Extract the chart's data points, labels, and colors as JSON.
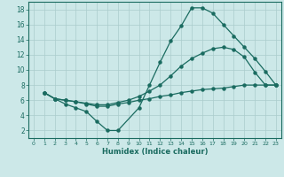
{
  "xlabel": "Humidex (Indice chaleur)",
  "bg_color": "#cce8e8",
  "line_color": "#1a6b60",
  "grid_color": "#aacccc",
  "xlim": [
    -0.5,
    23.5
  ],
  "ylim": [
    1.0,
    19.0
  ],
  "xticks": [
    0,
    1,
    2,
    3,
    4,
    5,
    6,
    7,
    8,
    9,
    10,
    11,
    12,
    13,
    14,
    15,
    16,
    17,
    18,
    19,
    20,
    21,
    22,
    23
  ],
  "yticks": [
    2,
    4,
    6,
    8,
    10,
    12,
    14,
    16,
    18
  ],
  "line1_x": [
    1,
    2,
    3,
    4,
    5,
    6,
    7,
    8,
    10,
    11,
    12,
    13,
    14,
    15,
    16,
    17,
    18,
    19,
    20,
    21,
    22,
    23
  ],
  "line1_y": [
    7.0,
    6.2,
    5.5,
    5.0,
    4.5,
    3.2,
    2.0,
    2.0,
    5.0,
    8.0,
    11.0,
    13.8,
    15.8,
    18.2,
    18.2,
    17.5,
    16.0,
    14.5,
    13.0,
    11.5,
    9.8,
    8.0
  ],
  "line2_x": [
    1,
    2,
    3,
    4,
    5,
    6,
    7,
    8,
    9,
    10,
    11,
    12,
    13,
    14,
    15,
    16,
    17,
    18,
    19,
    20,
    21,
    22,
    23
  ],
  "line2_y": [
    7.0,
    6.2,
    6.0,
    5.8,
    5.5,
    5.2,
    5.2,
    5.5,
    5.7,
    6.0,
    6.2,
    6.5,
    6.7,
    7.0,
    7.2,
    7.4,
    7.5,
    7.6,
    7.8,
    8.0,
    8.0,
    8.0,
    8.0
  ],
  "line3_x": [
    1,
    2,
    3,
    4,
    5,
    6,
    7,
    8,
    9,
    10,
    11,
    12,
    13,
    14,
    15,
    16,
    17,
    18,
    19,
    20,
    21,
    22,
    23
  ],
  "line3_y": [
    7.0,
    6.2,
    6.0,
    5.8,
    5.6,
    5.4,
    5.4,
    5.7,
    6.0,
    6.5,
    7.2,
    8.0,
    9.2,
    10.5,
    11.5,
    12.2,
    12.8,
    13.0,
    12.7,
    11.7,
    9.7,
    8.0,
    8.0
  ]
}
